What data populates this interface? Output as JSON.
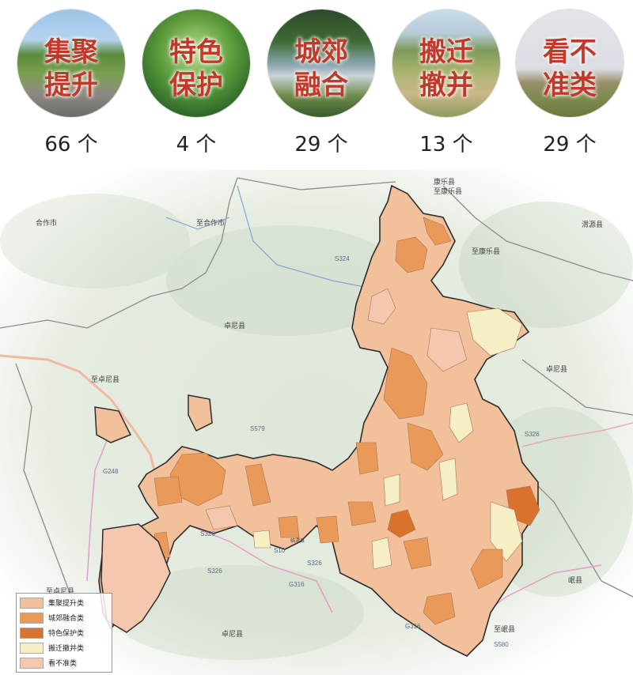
{
  "categories": [
    {
      "label_line1": "集聚",
      "label_line2": "提升",
      "count": "66 个"
    },
    {
      "label_line1": "特色",
      "label_line2": "保护",
      "count": "4 个"
    },
    {
      "label_line1": "城郊",
      "label_line2": "融合",
      "count": "29 个"
    },
    {
      "label_line1": "搬迁",
      "label_line2": "撤并",
      "count": "13 个"
    },
    {
      "label_line1": "看不",
      "label_line2": "准类",
      "count": "29 个"
    }
  ],
  "map": {
    "place_labels": {
      "hezuo": "合作市",
      "zhiheizuo": "至合作市",
      "kangle": "康乐县",
      "zhikangle": "至康乐县",
      "zhikangle2": "至康乐县",
      "weiyuan": "渭源县",
      "zhuoni_top": "卓尼县",
      "zhuoni_right": "卓尼县",
      "zhizhuoni": "至卓尼县",
      "zhizhuoni2": "至卓尼县",
      "zhuoni_bottom": "卓尼县",
      "minxian": "岷县",
      "zhiminxian": "至岷县",
      "town": "临潭县"
    },
    "roads": {
      "s324": "S324",
      "s579": "S579",
      "s326a": "S326",
      "s326b": "S326",
      "s326c": "S326",
      "s326d": "S326",
      "g248": "G248",
      "s10": "S10",
      "g316": "G316",
      "g316b": "G316",
      "s580": "S580"
    }
  },
  "legend": [
    {
      "label": "集聚提升类",
      "color": "#f2c09a"
    },
    {
      "label": "城郊融合类",
      "color": "#e99a58"
    },
    {
      "label": "特色保护类",
      "color": "#d9722c"
    },
    {
      "label": "搬迁撤并类",
      "color": "#f6efc6"
    },
    {
      "label": "看不准类",
      "color": "#f4c7ae"
    }
  ]
}
